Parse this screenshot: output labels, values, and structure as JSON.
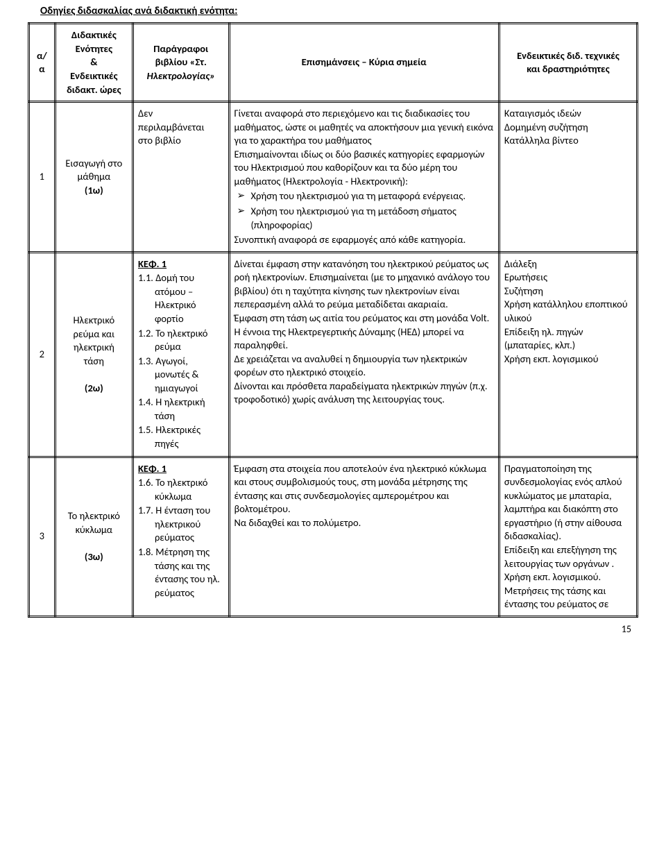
{
  "title": "Οδηγίες διδασκαλίας ανά διδακτική ενότητα:",
  "headers": {
    "aa": "α/α",
    "units_l1": "Διδακτικές",
    "units_l2": "Ενότητες",
    "units_l3": "&",
    "units_l4": "Ενδεικτικές",
    "units_l5": "διδακτ. ώρες",
    "para_l1": "Παράγραφοι",
    "para_l2": "βιβλίου «Στ.",
    "para_l3": "Ηλεκτρολογίας»",
    "main": "Επισημάνσεις – Κύρια σημεία",
    "tech_l1": "Ενδεικτικές διδ. τεχνικές",
    "tech_l2": "και δραστηριότητες"
  },
  "r1": {
    "num": "1",
    "unit_l1": "Εισαγωγή στο",
    "unit_l2": "μάθημα",
    "unit_hours": "(1ω)",
    "para_l1": "Δεν",
    "para_l2": "περιλαμβάνεται",
    "para_l3": "στο βιβλίο",
    "main_p1": "Γίνεται αναφορά στο περιεχόμενο και τις διαδικασίες του μαθήματος, ώστε οι μαθητές να αποκτήσουν μια γενική εικόνα για το χαρακτήρα του μαθήματος",
    "main_p2": "Επισημαίνονται ιδίως οι δύο βασικές κατηγορίες εφαρμογών του Ηλεκτρισμού που καθορίζουν και τα δύο μέρη του μαθήματος (Ηλεκτρολογία - Ηλεκτρονική):",
    "main_b1": "Χρήση του ηλεκτρισμού για τη μεταφορά ενέργειας.",
    "main_b2": "Χρήση του ηλεκτρισμού για τη μετάδοση σήματος (πληροφορίας)",
    "main_p3": "Συνοπτική αναφορά σε εφαρμογές από κάθε κατηγορία.",
    "tech_l1": "Καταιγισμός ιδεών",
    "tech_l2": "Δομημένη συζήτηση",
    "tech_l3": "Κατάλληλα βίντεο"
  },
  "r2": {
    "num": "2",
    "unit_l1": "Ηλεκτρικό",
    "unit_l2": "ρεύμα και",
    "unit_l3": "ηλεκτρική",
    "unit_l4": "τάση",
    "unit_hours": "(2ω)",
    "para_head": "ΚΕΦ. 1",
    "para_i1": "1.1. Δομή του ατόμου – Ηλεκτρικό φορτίο",
    "para_i2": "1.2. Το ηλεκτρικό ρεύμα",
    "para_i3": "1.3. Αγωγοί, μονωτές & ημιαγωγοί",
    "para_i4": "1.4. Η ηλεκτρική τάση",
    "para_i5": "1.5. Ηλεκτρικές πηγές",
    "main_p1": "Δίνεται έμφαση στην κατανόηση του ηλεκτρικού ρεύματος ως ροή ηλεκτρονίων. Επισημαίνεται (με το μηχανικό ανάλογο του βιβλίου) ότι η ταχύτητα κίνησης των ηλεκτρονίων είναι πεπερασμένη αλλά το ρεύμα μεταδίδεται ακαριαία.",
    "main_p2": "Έμφαση στη τάση ως αιτία του ρεύματος και στη μονάδα Volt.",
    "main_p3": "Η έννοια της Ηλεκτρεγερτικής Δύναμης (ΗΕΔ) μπορεί να παραληφθεί.",
    "main_p4": "Δε χρειάζεται να αναλυθεί η δημιουργία των ηλεκτρικών φορέων στο ηλεκτρικό στοιχείο.",
    "main_p5": "Δίνονται και πρόσθετα παραδείγματα ηλεκτρικών πηγών (π.χ. τροφοδοτικό) χωρίς ανάλυση της λειτουργίας τους.",
    "tech_l1": "Διάλεξη",
    "tech_l2": "Ερωτήσεις",
    "tech_l3": "Συζήτηση",
    "tech_l4": "Χρήση κατάλληλου εποπτικού υλικού",
    "tech_l5": "Επίδειξη ηλ. πηγών (μπαταρίες, κλπ.)",
    "tech_l6": "Χρήση εκπ. λογισμικού"
  },
  "r3": {
    "num": "3",
    "unit_l1": "Το ηλεκτρικό",
    "unit_l2": "κύκλωμα",
    "unit_hours": "(3ω)",
    "para_head": "ΚΕΦ. 1",
    "para_i1": "1.6. Το ηλεκτρικό κύκλωμα",
    "para_i2": "1.7. Η ένταση του ηλεκτρικού ρεύματος",
    "para_i3": "1.8. Μέτρηση της τάσης και της έντασης του ηλ. ρεύματος",
    "main_p1": "Έμφαση στα στοιχεία που αποτελούν ένα ηλεκτρικό κύκλωμα και στους συμβολισμούς τους, στη μονάδα μέτρησης της έντασης και στις συνδεσμολογίες αμπερομέτρου και βολτομέτρου.",
    "main_p2": "Να διδαχθεί και το πολύμετρο.",
    "tech_l1": "Πραγματοποίηση της συνδεσμολογίας ενός απλού κυκλώματος με μπαταρία, λαμπτήρα και διακόπτη στο εργαστήριο (ή στην αίθουσα διδασκαλίας).",
    "tech_l2": "Επίδειξη και επεξήγηση της λειτουργίας των οργάνων .",
    "tech_l3": "Χρήση εκπ. λογισμικού.",
    "tech_l4": " Μετρήσεις της τάσης και έντασης του ρεύματος σε"
  },
  "page_num": "15"
}
